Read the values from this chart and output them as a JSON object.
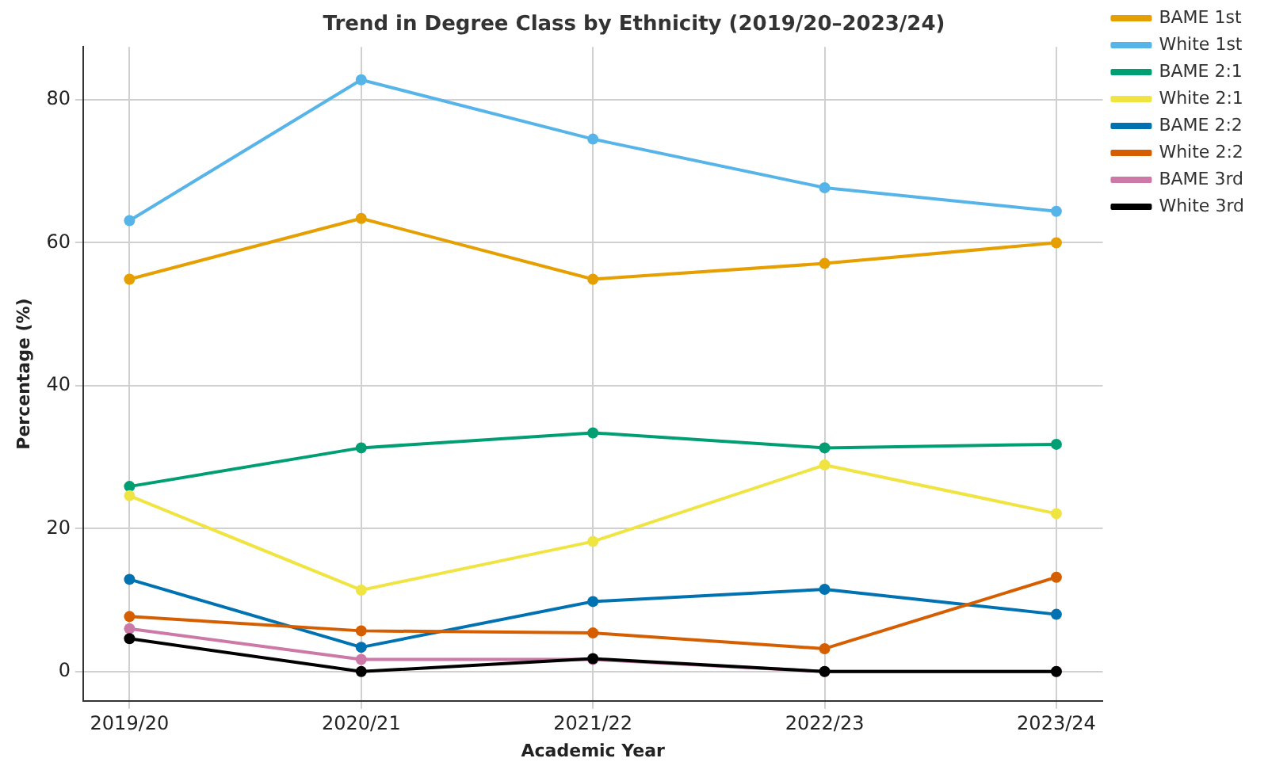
{
  "chart_data": {
    "type": "line",
    "title": "Trend in Degree Class by Ethnicity (2019/20–2023/24)",
    "xlabel": "Academic Year",
    "ylabel": "Percentage (%)",
    "categories": [
      "2019/20",
      "2020/21",
      "2021/22",
      "2022/23",
      "2023/24"
    ],
    "series": [
      {
        "name": "BAME 1st",
        "color": "#e69f00",
        "values": [
          54.9,
          63.4,
          54.9,
          57.1,
          60.0
        ]
      },
      {
        "name": "White 1st",
        "color": "#56b4e9",
        "values": [
          63.1,
          82.8,
          74.5,
          67.7,
          64.4
        ]
      },
      {
        "name": "BAME 2:1",
        "color": "#009e73",
        "values": [
          25.9,
          31.3,
          33.4,
          31.3,
          31.8
        ]
      },
      {
        "name": "White 2:1",
        "color": "#f0e442",
        "values": [
          24.6,
          11.4,
          18.2,
          28.9,
          22.1
        ]
      },
      {
        "name": "BAME 2:2",
        "color": "#0072b2",
        "values": [
          12.9,
          3.4,
          9.8,
          11.5,
          8.0
        ]
      },
      {
        "name": "White 2:2",
        "color": "#d55e00",
        "values": [
          7.7,
          5.7,
          5.4,
          3.2,
          13.2
        ]
      },
      {
        "name": "BAME 3rd",
        "color": "#cc79a7",
        "values": [
          6.0,
          1.7,
          1.7,
          0,
          0
        ]
      },
      {
        "name": "White 3rd",
        "color": "#000000",
        "values": [
          4.6,
          0,
          1.8,
          0,
          0
        ]
      }
    ],
    "ylim": [
      -4.1,
      87.4
    ],
    "yticks": [
      0,
      20,
      40,
      60,
      80
    ],
    "grid": true,
    "legend": "top right",
    "marker": "circle",
    "line_style": "solid"
  }
}
